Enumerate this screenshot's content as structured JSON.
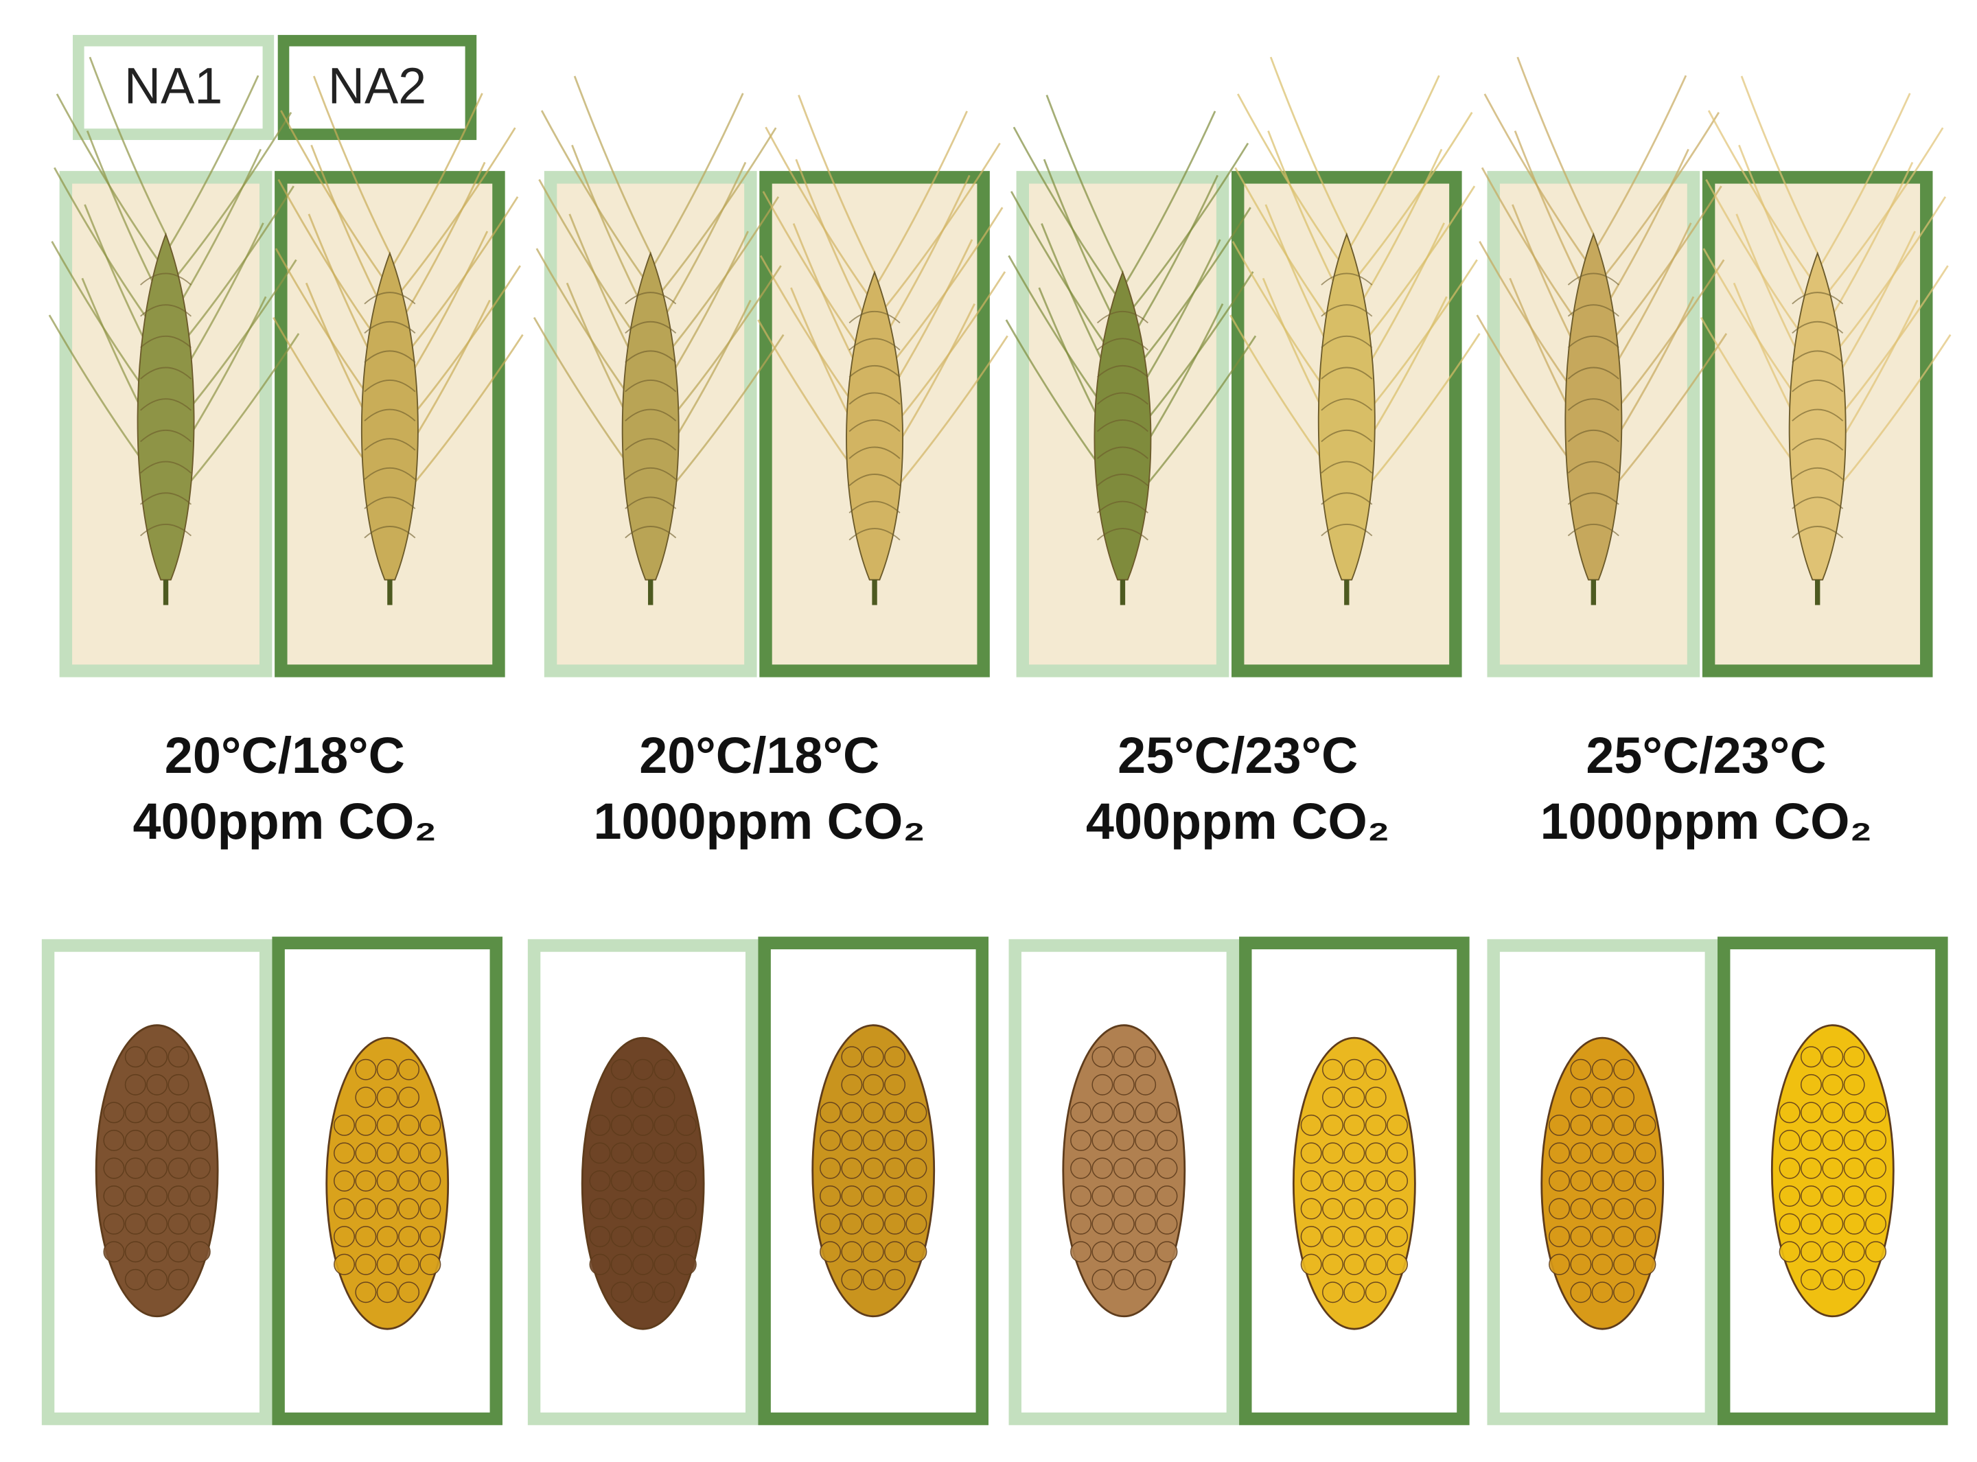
{
  "legend": [
    "NA1",
    "NA2"
  ],
  "conditions": [
    {
      "temperature": "20°C/18°C",
      "co2": "400ppm CO₂"
    },
    {
      "temperature": "20°C/18°C",
      "co2": "1000ppm CO₂"
    },
    {
      "temperature": "25°C/23°C",
      "co2": "400ppm CO₂"
    },
    {
      "temperature": "25°C/23°C",
      "co2": "1000ppm CO₂"
    }
  ]
}
